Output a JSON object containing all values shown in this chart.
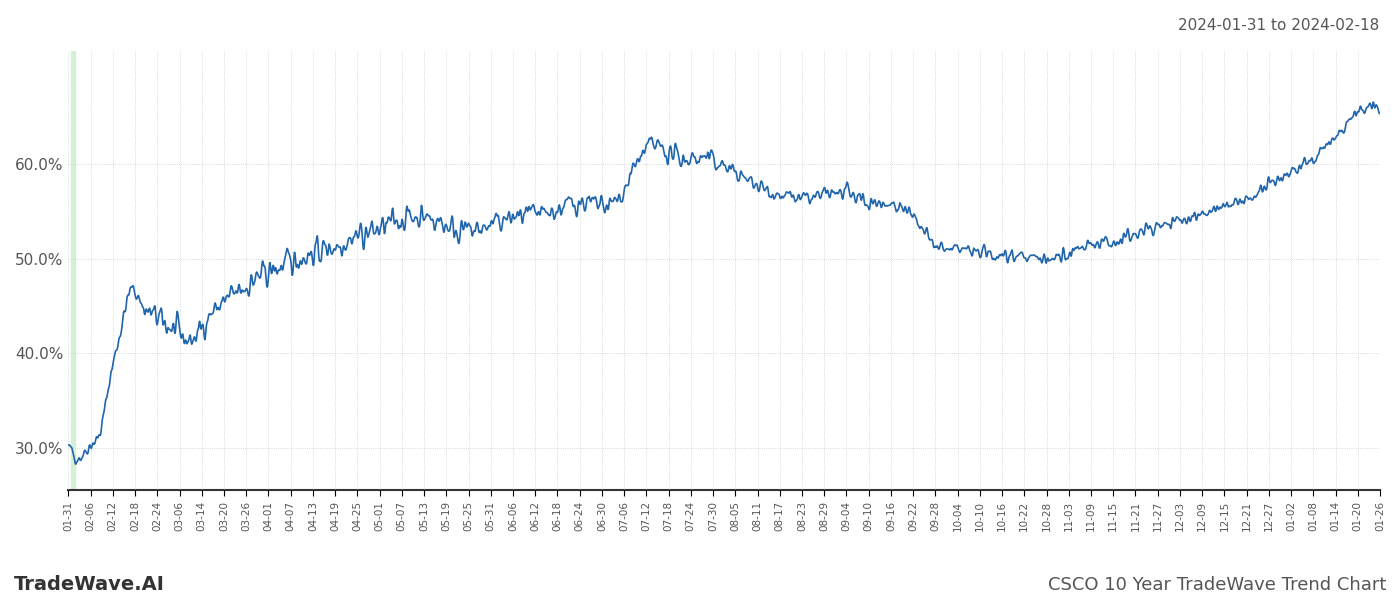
{
  "title_top_right": "2024-01-31 to 2024-02-18",
  "title_bottom_left": "TradeWave.AI",
  "title_bottom_right": "CSCO 10 Year TradeWave Trend Chart",
  "line_color": "#2166ac",
  "line_width": 1.2,
  "background_color": "#ffffff",
  "grid_color": "#cccccc",
  "highlight_color": "#d6f0d6",
  "ylim": [
    0.255,
    0.72
  ],
  "yticks": [
    0.3,
    0.4,
    0.5,
    0.6
  ],
  "x_labels": [
    "01-31",
    "02-06",
    "02-12",
    "02-18",
    "02-24",
    "03-06",
    "03-14",
    "03-20",
    "03-26",
    "04-01",
    "04-07",
    "04-13",
    "04-19",
    "04-25",
    "05-01",
    "05-07",
    "05-13",
    "05-19",
    "05-25",
    "05-31",
    "06-06",
    "06-12",
    "06-18",
    "06-24",
    "06-30",
    "07-06",
    "07-12",
    "07-18",
    "07-24",
    "07-30",
    "08-05",
    "08-11",
    "08-17",
    "08-23",
    "08-29",
    "09-04",
    "09-10",
    "09-16",
    "09-22",
    "09-28",
    "10-04",
    "10-10",
    "10-16",
    "10-22",
    "10-28",
    "11-03",
    "11-09",
    "11-15",
    "11-21",
    "11-27",
    "12-03",
    "12-09",
    "12-15",
    "12-21",
    "12-27",
    "01-02",
    "01-08",
    "01-14",
    "01-20",
    "01-26"
  ],
  "num_points": 2520
}
